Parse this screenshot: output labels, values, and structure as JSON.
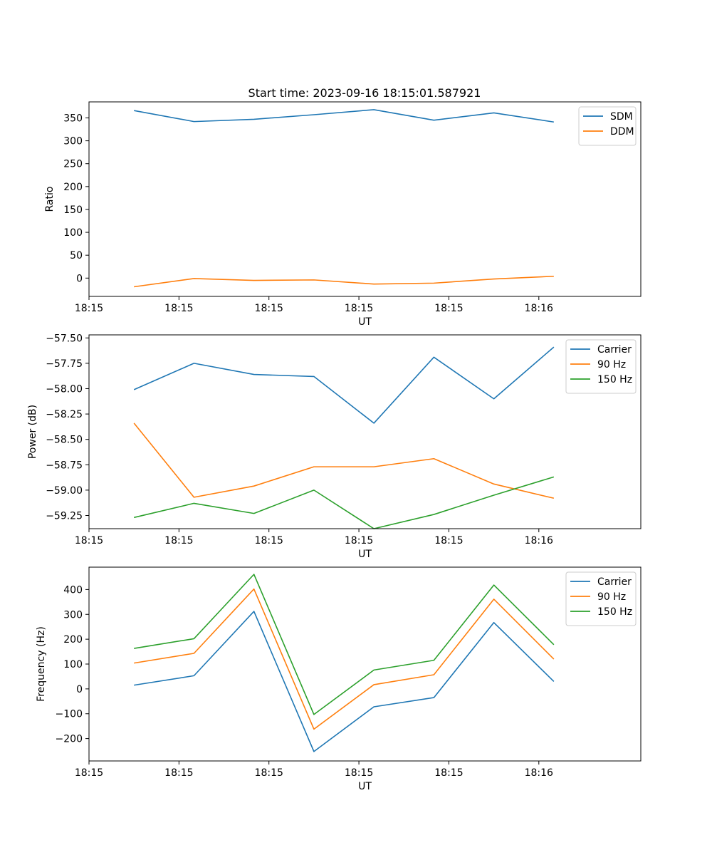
{
  "figure_title": "Start time: 2023-09-16 18:15:01.587921",
  "chart_data": [
    {
      "type": "line",
      "title": "Start time: 2023-09-16 18:15:01.587921",
      "xlabel": "UT",
      "ylabel": "Ratio",
      "x": [
        1,
        2,
        3,
        4,
        5,
        6,
        7,
        8
      ],
      "xlim": [
        0.25,
        9.45
      ],
      "ylim": [
        -40,
        385
      ],
      "x_ticks": [
        {
          "value": 0.25,
          "label": "18:15"
        },
        {
          "value": 1.75,
          "label": "18:15"
        },
        {
          "value": 3.25,
          "label": "18:15"
        },
        {
          "value": 4.75,
          "label": "18:15"
        },
        {
          "value": 6.25,
          "label": "18:15"
        },
        {
          "value": 7.75,
          "label": "18:16"
        }
      ],
      "y_ticks": [
        0,
        50,
        100,
        150,
        200,
        250,
        300,
        350
      ],
      "y_tick_labels": [
        "0",
        "50",
        "100",
        "150",
        "200",
        "250",
        "300",
        "350"
      ],
      "legend_position": "top-right",
      "series": [
        {
          "name": "SDM",
          "color": "#1f77b4",
          "values": [
            366,
            342,
            347,
            357,
            368,
            345,
            361,
            341
          ]
        },
        {
          "name": "DDM",
          "color": "#ff7f0e",
          "values": [
            -19,
            -1,
            -5,
            -4,
            -13,
            -11,
            -2,
            4
          ]
        }
      ]
    },
    {
      "type": "line",
      "xlabel": "UT",
      "ylabel": "Power (dB)",
      "x": [
        1,
        2,
        3,
        4,
        5,
        6,
        7,
        8
      ],
      "xlim": [
        0.25,
        9.45
      ],
      "ylim": [
        -59.38,
        -57.47
      ],
      "x_ticks": [
        {
          "value": 0.25,
          "label": "18:15"
        },
        {
          "value": 1.75,
          "label": "18:15"
        },
        {
          "value": 3.25,
          "label": "18:15"
        },
        {
          "value": 4.75,
          "label": "18:15"
        },
        {
          "value": 6.25,
          "label": "18:15"
        },
        {
          "value": 7.75,
          "label": "18:16"
        }
      ],
      "y_ticks": [
        -59.25,
        -59.0,
        -58.75,
        -58.5,
        -58.25,
        -58.0,
        -57.75,
        -57.5
      ],
      "y_tick_labels": [
        "−59.25",
        "−59.00",
        "−58.75",
        "−58.50",
        "−58.25",
        "−58.00",
        "−57.75",
        "−57.50"
      ],
      "legend_position": "top-right",
      "series": [
        {
          "name": "Carrier",
          "color": "#1f77b4",
          "values": [
            -58.01,
            -57.75,
            -57.86,
            -57.88,
            -58.34,
            -57.69,
            -58.1,
            -57.59
          ]
        },
        {
          "name": "90 Hz",
          "color": "#ff7f0e",
          "values": [
            -58.34,
            -59.07,
            -58.96,
            -58.77,
            -58.77,
            -58.69,
            -58.94,
            -59.08
          ]
        },
        {
          "name": "150 Hz",
          "color": "#2ca02c",
          "values": [
            -59.27,
            -59.13,
            -59.23,
            -59.0,
            -59.38,
            -59.24,
            -59.05,
            -58.87
          ]
        }
      ]
    },
    {
      "type": "line",
      "xlabel": "UT",
      "ylabel": "Frequency (Hz)",
      "x": [
        1,
        2,
        3,
        4,
        5,
        6,
        7,
        8
      ],
      "xlim": [
        0.25,
        9.45
      ],
      "ylim": [
        -290,
        490
      ],
      "x_ticks": [
        {
          "value": 0.25,
          "label": "18:15"
        },
        {
          "value": 1.75,
          "label": "18:15"
        },
        {
          "value": 3.25,
          "label": "18:15"
        },
        {
          "value": 4.75,
          "label": "18:15"
        },
        {
          "value": 6.25,
          "label": "18:15"
        },
        {
          "value": 7.75,
          "label": "18:16"
        }
      ],
      "y_ticks": [
        -200,
        -100,
        0,
        100,
        200,
        300,
        400
      ],
      "y_tick_labels": [
        "−200",
        "−100",
        "0",
        "100",
        "200",
        "300",
        "400"
      ],
      "legend_position": "top-right",
      "series": [
        {
          "name": "Carrier",
          "color": "#1f77b4",
          "values": [
            15,
            53,
            312,
            -252,
            -72,
            -35,
            267,
            30
          ]
        },
        {
          "name": "90 Hz",
          "color": "#ff7f0e",
          "values": [
            104,
            143,
            402,
            -162,
            17,
            57,
            361,
            120
          ]
        },
        {
          "name": "150 Hz",
          "color": "#2ca02c",
          "values": [
            163,
            202,
            461,
            -103,
            76,
            115,
            418,
            178
          ]
        }
      ]
    }
  ]
}
